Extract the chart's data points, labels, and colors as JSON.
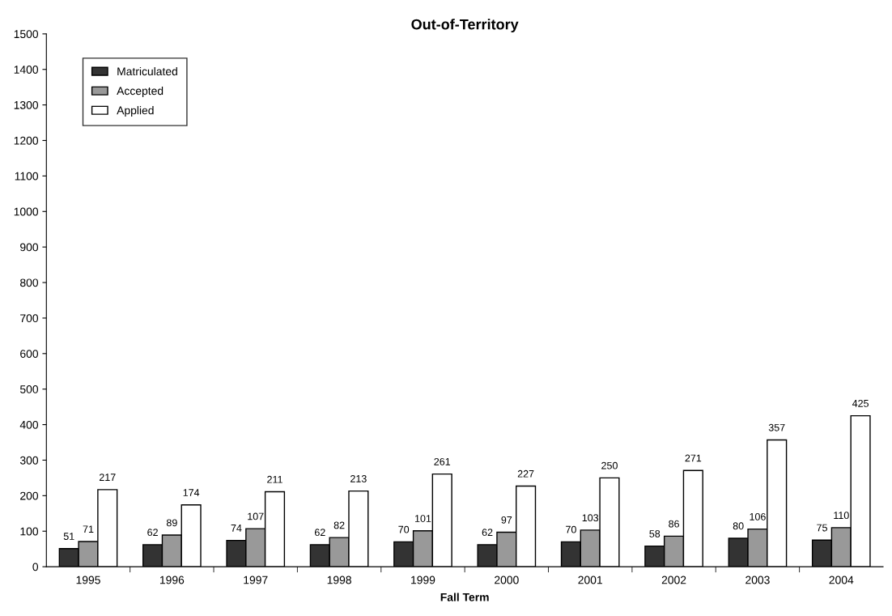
{
  "chart_data": {
    "type": "bar",
    "title": "Out-of-Territory",
    "xlabel": "Fall Term",
    "categories": [
      "1995",
      "1996",
      "1997",
      "1998",
      "1999",
      "2000",
      "2001",
      "2002",
      "2003",
      "2004"
    ],
    "series": [
      {
        "name": "Matriculated",
        "color": "#333333",
        "values": [
          51,
          62,
          74,
          62,
          70,
          62,
          70,
          58,
          80,
          75
        ]
      },
      {
        "name": "Accepted",
        "color": "#999999",
        "values": [
          71,
          89,
          107,
          82,
          101,
          97,
          103,
          86,
          106,
          110
        ]
      },
      {
        "name": "Applied",
        "color": "#ffffff",
        "values": [
          217,
          174,
          211,
          213,
          261,
          227,
          250,
          271,
          357,
          425
        ]
      }
    ],
    "ylim": [
      0,
      1500
    ],
    "yticks": [
      0,
      100,
      200,
      300,
      400,
      500,
      600,
      700,
      800,
      900,
      1000,
      1100,
      1200,
      1300,
      1400,
      1500
    ],
    "data_labels": true,
    "legend": "top left",
    "grid": false
  }
}
